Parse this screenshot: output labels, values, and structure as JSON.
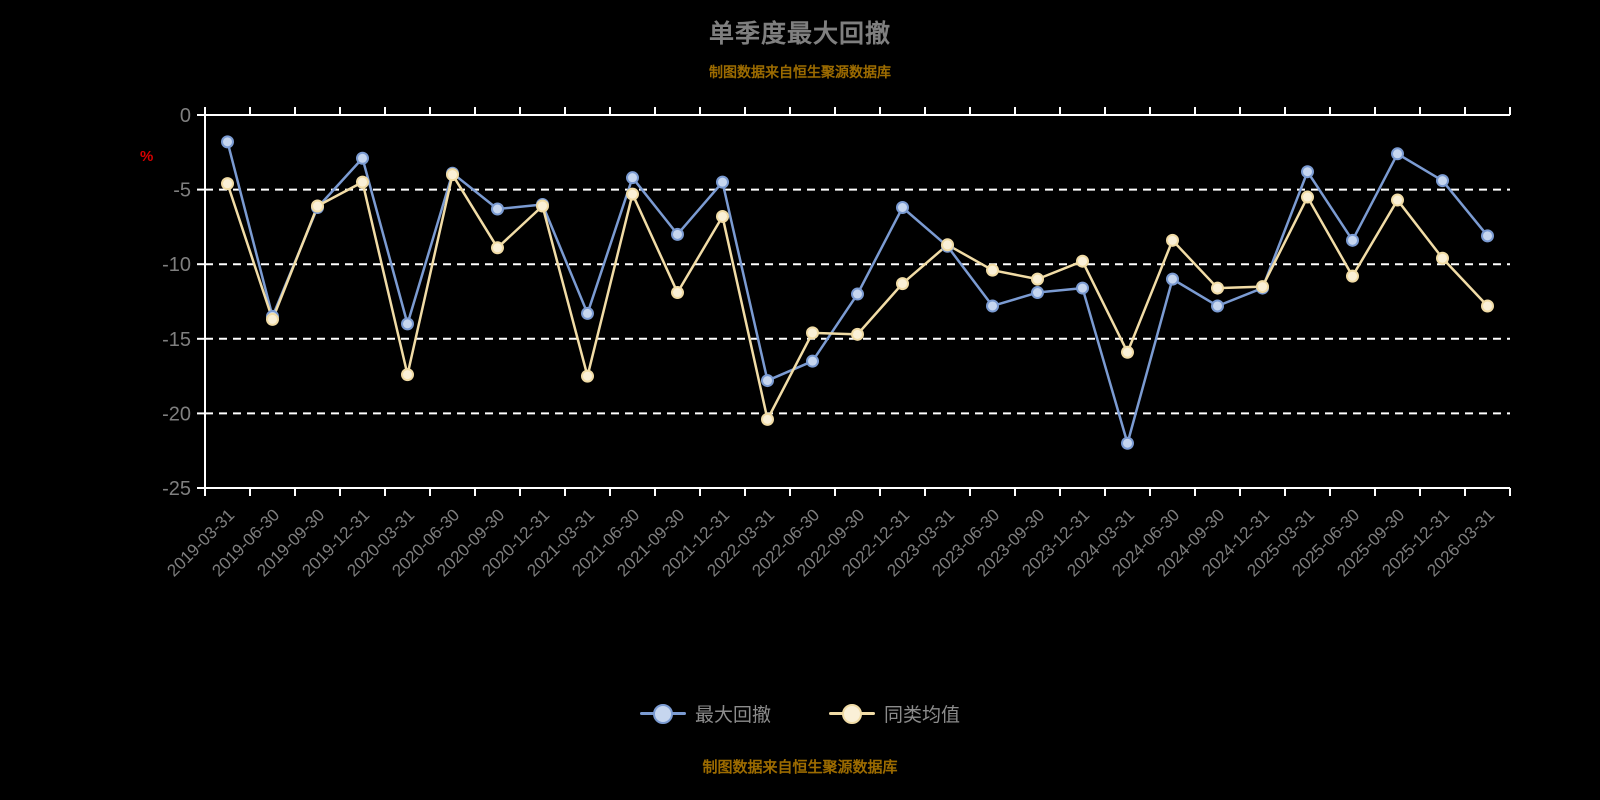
{
  "title": "单季度最大回撤",
  "subtitle": "制图数据来自恒生聚源数据库",
  "footer": "制图数据来自恒生聚源数据库",
  "y_unit_label": "%",
  "colors": {
    "background": "#000000",
    "title": "#7f7f7f",
    "subtitle": "#9c6b00",
    "footer": "#9c6b00",
    "axis": "#ffffff",
    "grid": "#ffffff",
    "tick_label": "#7f7f7f",
    "unit_label": "#d70000",
    "legend_label": "#8c8c8c"
  },
  "legend": [
    {
      "label": "最大回撤",
      "color": "#7b9bd2",
      "marker_fill": "#c6d6ef"
    },
    {
      "label": "同类均值",
      "color": "#f1dca6",
      "marker_fill": "#faf0d7"
    }
  ],
  "chart_data": {
    "type": "line",
    "title": "单季度最大回撤",
    "ylabel": "%",
    "ylim": [
      -25,
      0
    ],
    "yticks": [
      0,
      -5,
      -10,
      -15,
      -20,
      -25
    ],
    "grid": "horizontal-dashed",
    "legend_position": "bottom",
    "categories": [
      "2019-03-31",
      "2019-06-30",
      "2019-09-30",
      "2019-12-31",
      "2020-03-31",
      "2020-06-30",
      "2020-09-30",
      "2020-12-31",
      "2021-03-31",
      "2021-06-30",
      "2021-09-30",
      "2021-12-31",
      "2022-03-31",
      "2022-06-30",
      "2022-09-30",
      "2022-12-31",
      "2023-03-31",
      "2023-06-30",
      "2023-09-30",
      "2023-12-31",
      "2024-03-31",
      "2024-06-30",
      "2024-09-30",
      "2024-12-31",
      "2025-03-31",
      "2025-06-30",
      "2025-09-30",
      "2025-12-31",
      "2026-03-31"
    ],
    "series": [
      {
        "name": "最大回撤",
        "color": "#7b9bd2",
        "marker_fill": "#c6d6ef",
        "values": [
          -1.8,
          -13.5,
          -6.2,
          -2.9,
          -14.0,
          -3.9,
          -6.3,
          -6.0,
          -13.3,
          -4.2,
          -8.0,
          -4.5,
          -17.8,
          -16.5,
          -12.0,
          -6.2,
          -8.8,
          -12.8,
          -11.9,
          -11.6,
          -22.0,
          -11.0,
          -12.8,
          -11.6,
          -3.8,
          -8.4,
          -2.6,
          -4.4,
          -8.1
        ]
      },
      {
        "name": "同类均值",
        "color": "#f1dca6",
        "marker_fill": "#faf0d7",
        "values": [
          -4.6,
          -13.7,
          -6.1,
          -4.5,
          -17.4,
          -4.0,
          -8.9,
          -6.1,
          -17.5,
          -5.3,
          -11.9,
          -6.8,
          -20.4,
          -14.6,
          -14.7,
          -11.3,
          -8.7,
          -10.4,
          -11.0,
          -9.8,
          -15.9,
          -8.4,
          -11.6,
          -11.5,
          -5.5,
          -10.8,
          -5.7,
          -9.6,
          -12.8
        ]
      }
    ]
  }
}
